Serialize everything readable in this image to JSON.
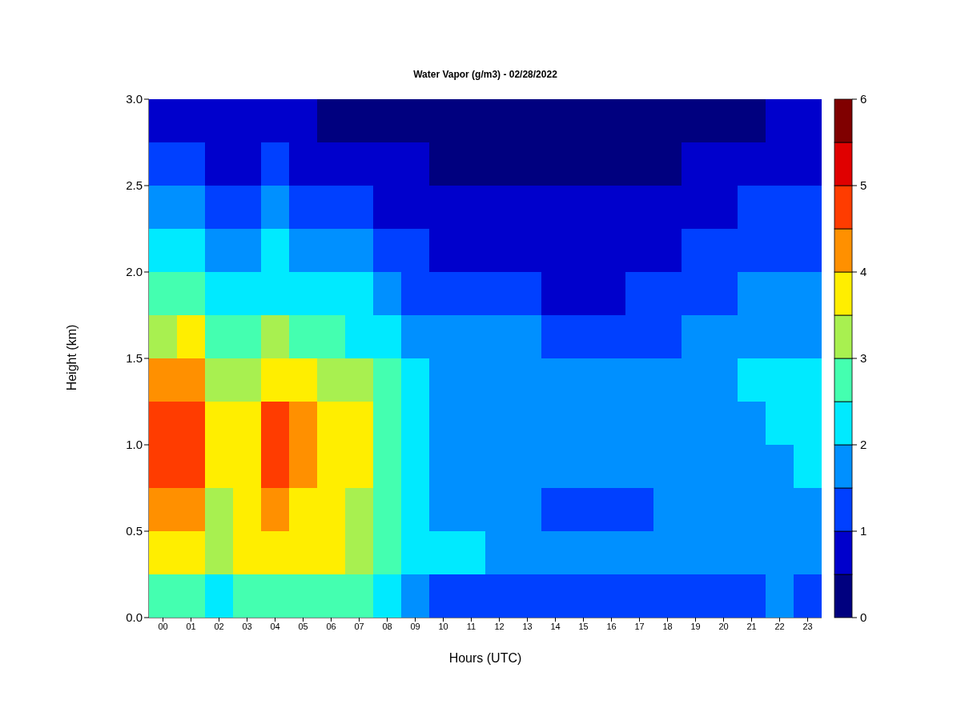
{
  "chart_data": {
    "type": "heatmap",
    "title": "Water Vapor (g/m3) - 02/28/2022",
    "xlabel": "Hours (UTC)",
    "ylabel": "Height (km)",
    "categories": [
      "00",
      "01",
      "02",
      "03",
      "04",
      "05",
      "06",
      "07",
      "08",
      "09",
      "10",
      "11",
      "12",
      "13",
      "14",
      "15",
      "16",
      "17",
      "18",
      "19",
      "20",
      "21",
      "22",
      "23"
    ],
    "ylim": [
      0,
      3
    ],
    "yticks": [
      {
        "value": 0,
        "label": "0.0"
      },
      {
        "value": 0.5,
        "label": "0.5"
      },
      {
        "value": 1,
        "label": "1.0"
      },
      {
        "value": 1.5,
        "label": "1.5"
      },
      {
        "value": 2,
        "label": "2.0"
      },
      {
        "value": 2.5,
        "label": "2.5"
      },
      {
        "value": 3,
        "label": "3.0"
      }
    ],
    "clim": [
      0,
      6
    ],
    "cticks": [
      0,
      1,
      2,
      3,
      4,
      5,
      6
    ],
    "cells": [
      [
        0.75,
        0.75,
        0.75,
        0.75,
        0.75,
        0.75,
        0.25,
        0.25,
        0.25,
        0.25,
        0.25,
        0.25,
        0.25,
        0.25,
        0.25,
        0.25,
        0.25,
        0.25,
        0.25,
        0.25,
        0.25,
        0.25,
        0.75,
        0.75
      ],
      [
        1.25,
        1.25,
        0.75,
        0.75,
        1.25,
        0.75,
        0.75,
        0.75,
        0.75,
        0.75,
        0.25,
        0.25,
        0.25,
        0.25,
        0.25,
        0.25,
        0.25,
        0.25,
        0.25,
        0.75,
        0.75,
        0.75,
        0.75,
        0.75
      ],
      [
        1.75,
        1.75,
        1.25,
        1.25,
        1.75,
        1.25,
        1.25,
        1.25,
        0.75,
        0.75,
        0.75,
        0.75,
        0.75,
        0.75,
        0.75,
        0.75,
        0.75,
        0.75,
        0.75,
        0.75,
        0.75,
        1.25,
        1.25,
        1.25
      ],
      [
        2.25,
        2.25,
        1.75,
        1.75,
        2.25,
        1.75,
        1.75,
        1.75,
        1.25,
        1.25,
        0.75,
        0.75,
        0.75,
        0.75,
        0.75,
        0.75,
        0.75,
        0.75,
        0.75,
        1.25,
        1.25,
        1.25,
        1.25,
        1.25
      ],
      [
        2.75,
        2.75,
        2.25,
        2.25,
        2.25,
        2.25,
        2.25,
        2.25,
        1.75,
        1.25,
        1.25,
        1.25,
        1.25,
        1.25,
        0.75,
        0.75,
        0.75,
        1.25,
        1.25,
        1.25,
        1.25,
        1.75,
        1.75,
        1.75
      ],
      [
        3.25,
        3.75,
        2.75,
        2.75,
        3.25,
        2.75,
        2.75,
        2.25,
        2.25,
        1.75,
        1.75,
        1.75,
        1.75,
        1.75,
        1.25,
        1.25,
        1.25,
        1.25,
        1.25,
        1.75,
        1.75,
        1.75,
        1.75,
        1.75
      ],
      [
        4.25,
        4.25,
        3.25,
        3.25,
        3.75,
        3.75,
        3.25,
        3.25,
        2.75,
        2.25,
        1.75,
        1.75,
        1.75,
        1.75,
        1.75,
        1.75,
        1.75,
        1.75,
        1.75,
        1.75,
        1.75,
        2.25,
        2.25,
        2.25
      ],
      [
        4.75,
        4.75,
        3.75,
        3.75,
        4.75,
        4.25,
        3.75,
        3.75,
        2.75,
        2.25,
        1.75,
        1.75,
        1.75,
        1.75,
        1.75,
        1.75,
        1.75,
        1.75,
        1.75,
        1.75,
        1.75,
        1.75,
        2.25,
        2.25
      ],
      [
        4.75,
        4.75,
        3.75,
        3.75,
        4.75,
        4.25,
        3.75,
        3.75,
        2.75,
        2.25,
        1.75,
        1.75,
        1.75,
        1.75,
        1.75,
        1.75,
        1.75,
        1.75,
        1.75,
        1.75,
        1.75,
        1.75,
        1.75,
        2.25
      ],
      [
        4.25,
        4.25,
        3.25,
        3.75,
        4.25,
        3.75,
        3.75,
        3.25,
        2.75,
        2.25,
        1.75,
        1.75,
        1.75,
        1.75,
        1.25,
        1.25,
        1.25,
        1.25,
        1.75,
        1.75,
        1.75,
        1.75,
        1.75,
        1.75
      ],
      [
        3.75,
        3.75,
        3.25,
        3.75,
        3.75,
        3.75,
        3.75,
        3.25,
        2.75,
        2.25,
        2.25,
        2.25,
        1.75,
        1.75,
        1.75,
        1.75,
        1.75,
        1.75,
        1.75,
        1.75,
        1.75,
        1.75,
        1.75,
        1.75
      ],
      [
        2.75,
        2.75,
        2.25,
        2.75,
        2.75,
        2.75,
        2.75,
        2.75,
        2.25,
        1.75,
        1.25,
        1.25,
        1.25,
        1.25,
        1.25,
        1.25,
        1.25,
        1.25,
        1.25,
        1.25,
        1.25,
        1.25,
        1.75,
        1.25
      ]
    ]
  }
}
